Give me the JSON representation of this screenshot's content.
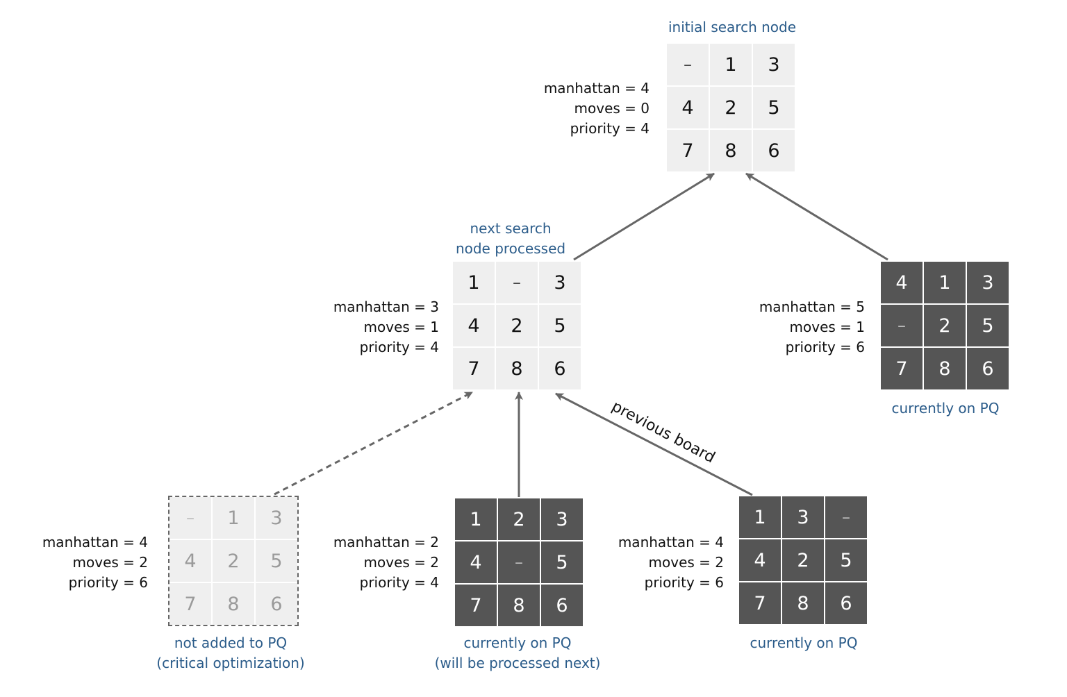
{
  "nodes": {
    "initial": {
      "caption": [
        "initial search node"
      ],
      "cells": [
        "–",
        "1",
        "3",
        "4",
        "2",
        "5",
        "7",
        "8",
        "6"
      ],
      "manhattan": "manhattan = 4",
      "moves": "moves = 0",
      "priority": "priority = 4"
    },
    "next": {
      "caption": [
        "next search",
        "node processed"
      ],
      "cells": [
        "1",
        "–",
        "3",
        "4",
        "2",
        "5",
        "7",
        "8",
        "6"
      ],
      "manhattan": "manhattan = 3",
      "moves": "moves = 1",
      "priority": "priority = 4"
    },
    "right_pq": {
      "caption": [
        "currently on PQ"
      ],
      "cells": [
        "4",
        "1",
        "3",
        "–",
        "2",
        "5",
        "7",
        "8",
        "6"
      ],
      "manhattan": "manhattan = 5",
      "moves": "moves = 1",
      "priority": "priority = 6"
    },
    "not_added": {
      "caption": [
        "not added to PQ",
        "(critical optimization)"
      ],
      "cells": [
        "–",
        "1",
        "3",
        "4",
        "2",
        "5",
        "7",
        "8",
        "6"
      ],
      "manhattan": "manhattan = 4",
      "moves": "moves = 2",
      "priority": "priority = 6"
    },
    "middle_pq": {
      "caption": [
        "currently on PQ",
        "(will be processed next)"
      ],
      "cells": [
        "1",
        "2",
        "3",
        "4",
        "–",
        "5",
        "7",
        "8",
        "6"
      ],
      "manhattan": "manhattan = 2",
      "moves": "moves = 2",
      "priority": "priority = 4"
    },
    "bottom_right_pq": {
      "caption": [
        "currently on PQ"
      ],
      "cells": [
        "1",
        "3",
        "–",
        "4",
        "2",
        "5",
        "7",
        "8",
        "6"
      ],
      "manhattan": "manhattan = 4",
      "moves": "moves = 2",
      "priority": "priority = 6"
    }
  },
  "edge_label": "previous board",
  "colors": {
    "caption": "#2b5c8a",
    "arrow": "#666666",
    "dark_tile": "#555555",
    "light_tile": "#efefef"
  }
}
